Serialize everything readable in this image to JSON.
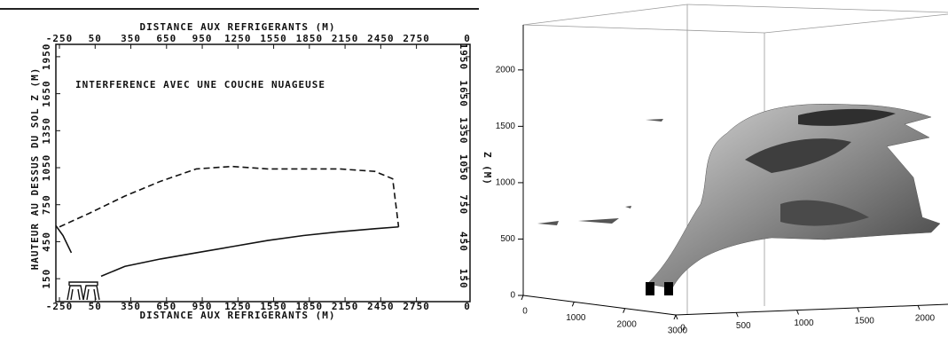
{
  "chart_data": [
    {
      "type": "line",
      "title": "DISTANCE AUX REFRIGERANTS (M)",
      "x_label": "DISTANCE AUX REFRIGERANTS (M)",
      "y_label": "HAUTEUR AU DESSUS DU SOL Z (M)",
      "y2_label": "Z (M)",
      "annotation": "INTERFERENCE AVEC UNE COUCHE NUAGEUSE",
      "x_end_label": "0",
      "xlim": [
        -280,
        3200
      ],
      "ylim": [
        0,
        2050
      ],
      "xticks": [
        -250,
        50,
        350,
        650,
        950,
        1250,
        1550,
        1850,
        2150,
        2450,
        2750
      ],
      "yticks": [
        150,
        450,
        750,
        1050,
        1350,
        1650,
        1950
      ],
      "series": [
        {
          "color": "#111111",
          "style": "dashed",
          "x": [
            -250,
            0,
            300,
            600,
            900,
            1200,
            1500,
            1800,
            2100,
            2400,
            2550,
            2600
          ],
          "values": [
            570,
            680,
            820,
            940,
            1040,
            1060,
            1040,
            1040,
            1040,
            1020,
            960,
            570
          ]
        },
        {
          "color": "#111111",
          "style": "solid",
          "x": [
            100,
            300,
            600,
            900,
            1200,
            1500,
            1800,
            2100,
            2400,
            2600
          ],
          "values": [
            170,
            250,
            310,
            360,
            410,
            460,
            500,
            530,
            555,
            570
          ]
        },
        {
          "color": "#111111",
          "style": "solid",
          "x": [
            -280,
            -220,
            -150
          ],
          "values": [
            580,
            500,
            360
          ]
        }
      ]
    },
    {
      "type": "surface3d",
      "xlim": [
        0,
        3000
      ],
      "ylim": [
        0,
        2000
      ],
      "zlim": [
        0,
        2400
      ],
      "xticks": [
        0,
        1000,
        2000,
        3000
      ],
      "yticks": [
        0,
        500,
        1000,
        1500,
        2000
      ],
      "zticks": [
        0,
        500,
        1000,
        1500,
        2000
      ]
    }
  ]
}
